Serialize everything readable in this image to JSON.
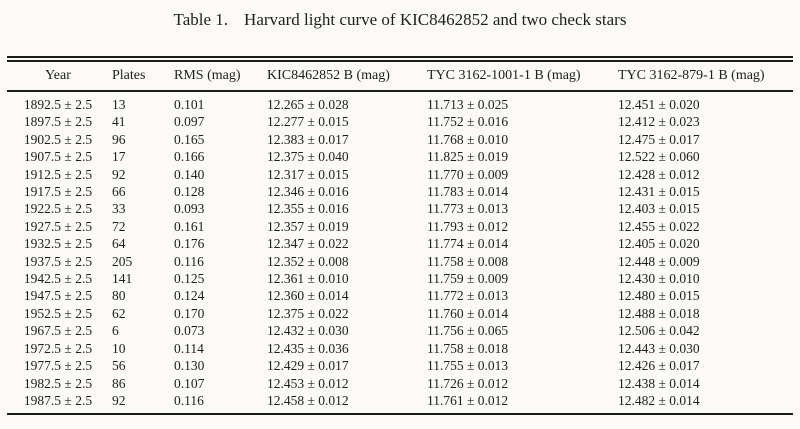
{
  "table": {
    "label": "Table 1.",
    "title": "Harvard light curve of KIC8462852 and two check stars",
    "columns": [
      "Year",
      "Plates",
      "RMS (mag)",
      "KIC8462852 B (mag)",
      "TYC 3162-1001-1 B (mag)",
      "TYC 3162-879-1 B (mag)"
    ],
    "rows": [
      [
        "1892.5 ± 2.5",
        "13",
        "0.101",
        "12.265 ± 0.028",
        "11.713 ± 0.025",
        "12.451 ± 0.020"
      ],
      [
        "1897.5 ± 2.5",
        "41",
        "0.097",
        "12.277 ± 0.015",
        "11.752 ± 0.016",
        "12.412 ± 0.023"
      ],
      [
        "1902.5 ± 2.5",
        "96",
        "0.165",
        "12.383 ± 0.017",
        "11.768 ± 0.010",
        "12.475 ± 0.017"
      ],
      [
        "1907.5 ± 2.5",
        "17",
        "0.166",
        "12.375 ± 0.040",
        "11.825 ± 0.019",
        "12.522 ± 0.060"
      ],
      [
        "1912.5 ± 2.5",
        "92",
        "0.140",
        "12.317 ± 0.015",
        "11.770 ± 0.009",
        "12.428 ± 0.012"
      ],
      [
        "1917.5 ± 2.5",
        "66",
        "0.128",
        "12.346 ± 0.016",
        "11.783 ± 0.014",
        "12.431 ± 0.015"
      ],
      [
        "1922.5 ± 2.5",
        "33",
        "0.093",
        "12.355 ± 0.016",
        "11.773 ± 0.013",
        "12.403 ± 0.015"
      ],
      [
        "1927.5 ± 2.5",
        "72",
        "0.161",
        "12.357 ± 0.019",
        "11.793 ± 0.012",
        "12.455 ± 0.022"
      ],
      [
        "1932.5 ± 2.5",
        "64",
        "0.176",
        "12.347 ± 0.022",
        "11.774 ± 0.014",
        "12.405 ± 0.020"
      ],
      [
        "1937.5 ± 2.5",
        "205",
        "0.116",
        "12.352 ± 0.008",
        "11.758 ± 0.008",
        "12.448 ± 0.009"
      ],
      [
        "1942.5 ± 2.5",
        "141",
        "0.125",
        "12.361 ± 0.010",
        "11.759 ± 0.009",
        "12.430 ± 0.010"
      ],
      [
        "1947.5 ± 2.5",
        "80",
        "0.124",
        "12.360 ± 0.014",
        "11.772 ± 0.013",
        "12.480 ± 0.015"
      ],
      [
        "1952.5 ± 2.5",
        "62",
        "0.170",
        "12.375 ± 0.022",
        "11.760 ± 0.014",
        "12.488 ± 0.018"
      ],
      [
        "1967.5 ± 2.5",
        "6",
        "0.073",
        "12.432 ± 0.030",
        "11.756 ± 0.065",
        "12.506 ± 0.042"
      ],
      [
        "1972.5 ± 2.5",
        "10",
        "0.114",
        "12.435 ± 0.036",
        "11.758 ± 0.018",
        "12.443 ± 0.030"
      ],
      [
        "1977.5 ± 2.5",
        "56",
        "0.130",
        "12.429 ± 0.017",
        "11.755 ± 0.013",
        "12.426 ± 0.017"
      ],
      [
        "1982.5 ± 2.5",
        "86",
        "0.107",
        "12.453 ± 0.012",
        "11.726 ± 0.012",
        "12.438 ± 0.014"
      ],
      [
        "1987.5 ± 2.5",
        "92",
        "0.116",
        "12.458 ± 0.012",
        "11.761 ± 0.012",
        "12.482 ± 0.014"
      ]
    ]
  }
}
